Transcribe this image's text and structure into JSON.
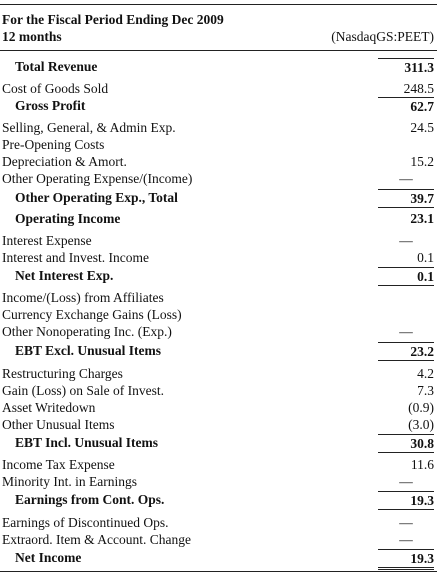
{
  "header": {
    "line1": "For the Fiscal Period Ending Dec 2009",
    "line2": "12 months",
    "column": "(NasdaqGS:PEET)"
  },
  "rows": [
    {
      "label": "Total Revenue",
      "value": "311.3"
    },
    {
      "label": "Cost of Goods Sold",
      "value": "248.5"
    },
    {
      "label": "Gross Profit",
      "value": "62.7"
    },
    {
      "label": "Selling, General, & Admin Exp.",
      "value": "24.5"
    },
    {
      "label": "Pre-Opening Costs",
      "value": ""
    },
    {
      "label": "Depreciation & Amort.",
      "value": "15.2"
    },
    {
      "label": "Other Operating Expense/(Income)",
      "value": "—"
    },
    {
      "label": "Other Operating Exp., Total",
      "value": "39.7"
    },
    {
      "label": "Operating Income",
      "value": "23.1"
    },
    {
      "label": "Interest Expense",
      "value": "—"
    },
    {
      "label": "Interest and Invest. Income",
      "value": "0.1"
    },
    {
      "label": "Net Interest Exp.",
      "value": "0.1"
    },
    {
      "label": "Income/(Loss) from Affiliates",
      "value": ""
    },
    {
      "label": "Currency Exchange Gains (Loss)",
      "value": ""
    },
    {
      "label": "Other Nonoperating Inc. (Exp.)",
      "value": "—"
    },
    {
      "label": "EBT Excl. Unusual Items",
      "value": "23.2"
    },
    {
      "label": "Restructuring Charges",
      "value": "4.2"
    },
    {
      "label": "Gain (Loss) on Sale of Invest.",
      "value": "7.3"
    },
    {
      "label": "Asset Writedown",
      "value": "(0.9)"
    },
    {
      "label": "Other Unusual Items",
      "value": "(3.0)"
    },
    {
      "label": "EBT Incl. Unusual Items",
      "value": "30.8"
    },
    {
      "label": "Income Tax Expense",
      "value": "11.6"
    },
    {
      "label": "Minority Int. in Earnings",
      "value": "—"
    },
    {
      "label": "Earnings from Cont. Ops.",
      "value": "19.3"
    },
    {
      "label": "Earnings of Discontinued Ops.",
      "value": "—"
    },
    {
      "label": "Extraord. Item & Account. Change",
      "value": "—"
    },
    {
      "label": "Net Income",
      "value": "19.3"
    }
  ]
}
